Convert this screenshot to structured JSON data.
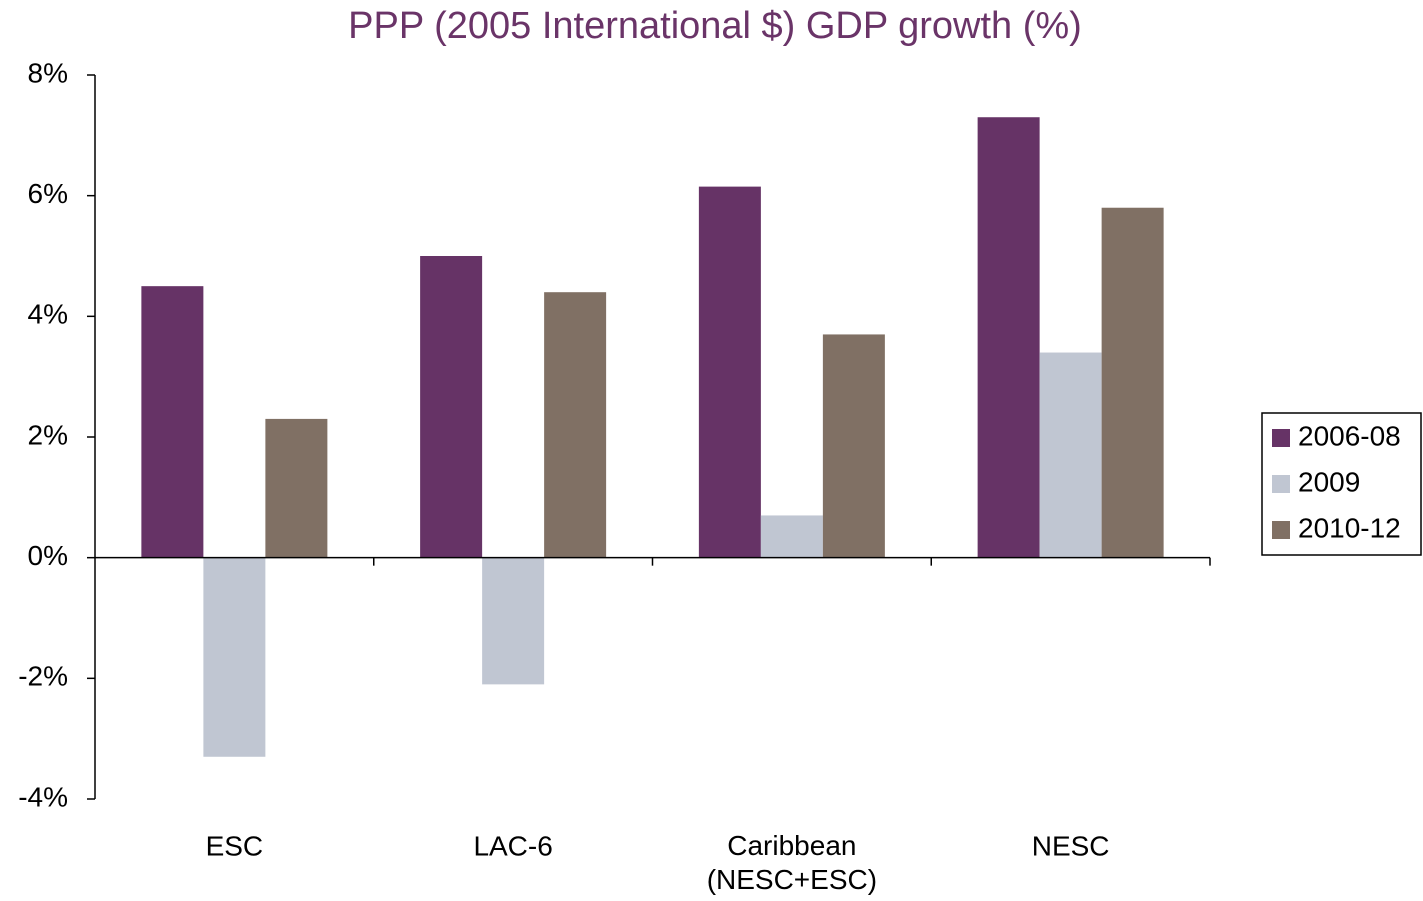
{
  "chart_data": {
    "type": "bar",
    "title": "PPP (2005 International $) GDP growth (%)",
    "categories": [
      "ESC",
      "LAC-6",
      "Caribbean\n(NESC+ESC)",
      "NESC"
    ],
    "series": [
      {
        "name": "2006-08",
        "color": "#663366",
        "values": [
          4.5,
          5.0,
          6.15,
          7.3
        ]
      },
      {
        "name": "2009",
        "color": "#c0c6d2",
        "values": [
          -3.3,
          -2.1,
          0.7,
          3.4
        ]
      },
      {
        "name": "2010-12",
        "color": "#807064",
        "values": [
          2.3,
          4.4,
          3.7,
          5.8
        ]
      }
    ],
    "ylim": [
      -4,
      8
    ],
    "yticks": [
      {
        "value": -4,
        "label": "-4%"
      },
      {
        "value": -2,
        "label": "-2%"
      },
      {
        "value": 0,
        "label": "0%"
      },
      {
        "value": 2,
        "label": "2%"
      },
      {
        "value": 4,
        "label": "4%"
      },
      {
        "value": 6,
        "label": "6%"
      },
      {
        "value": 8,
        "label": "8%"
      }
    ],
    "grid": false,
    "legend": "right"
  }
}
